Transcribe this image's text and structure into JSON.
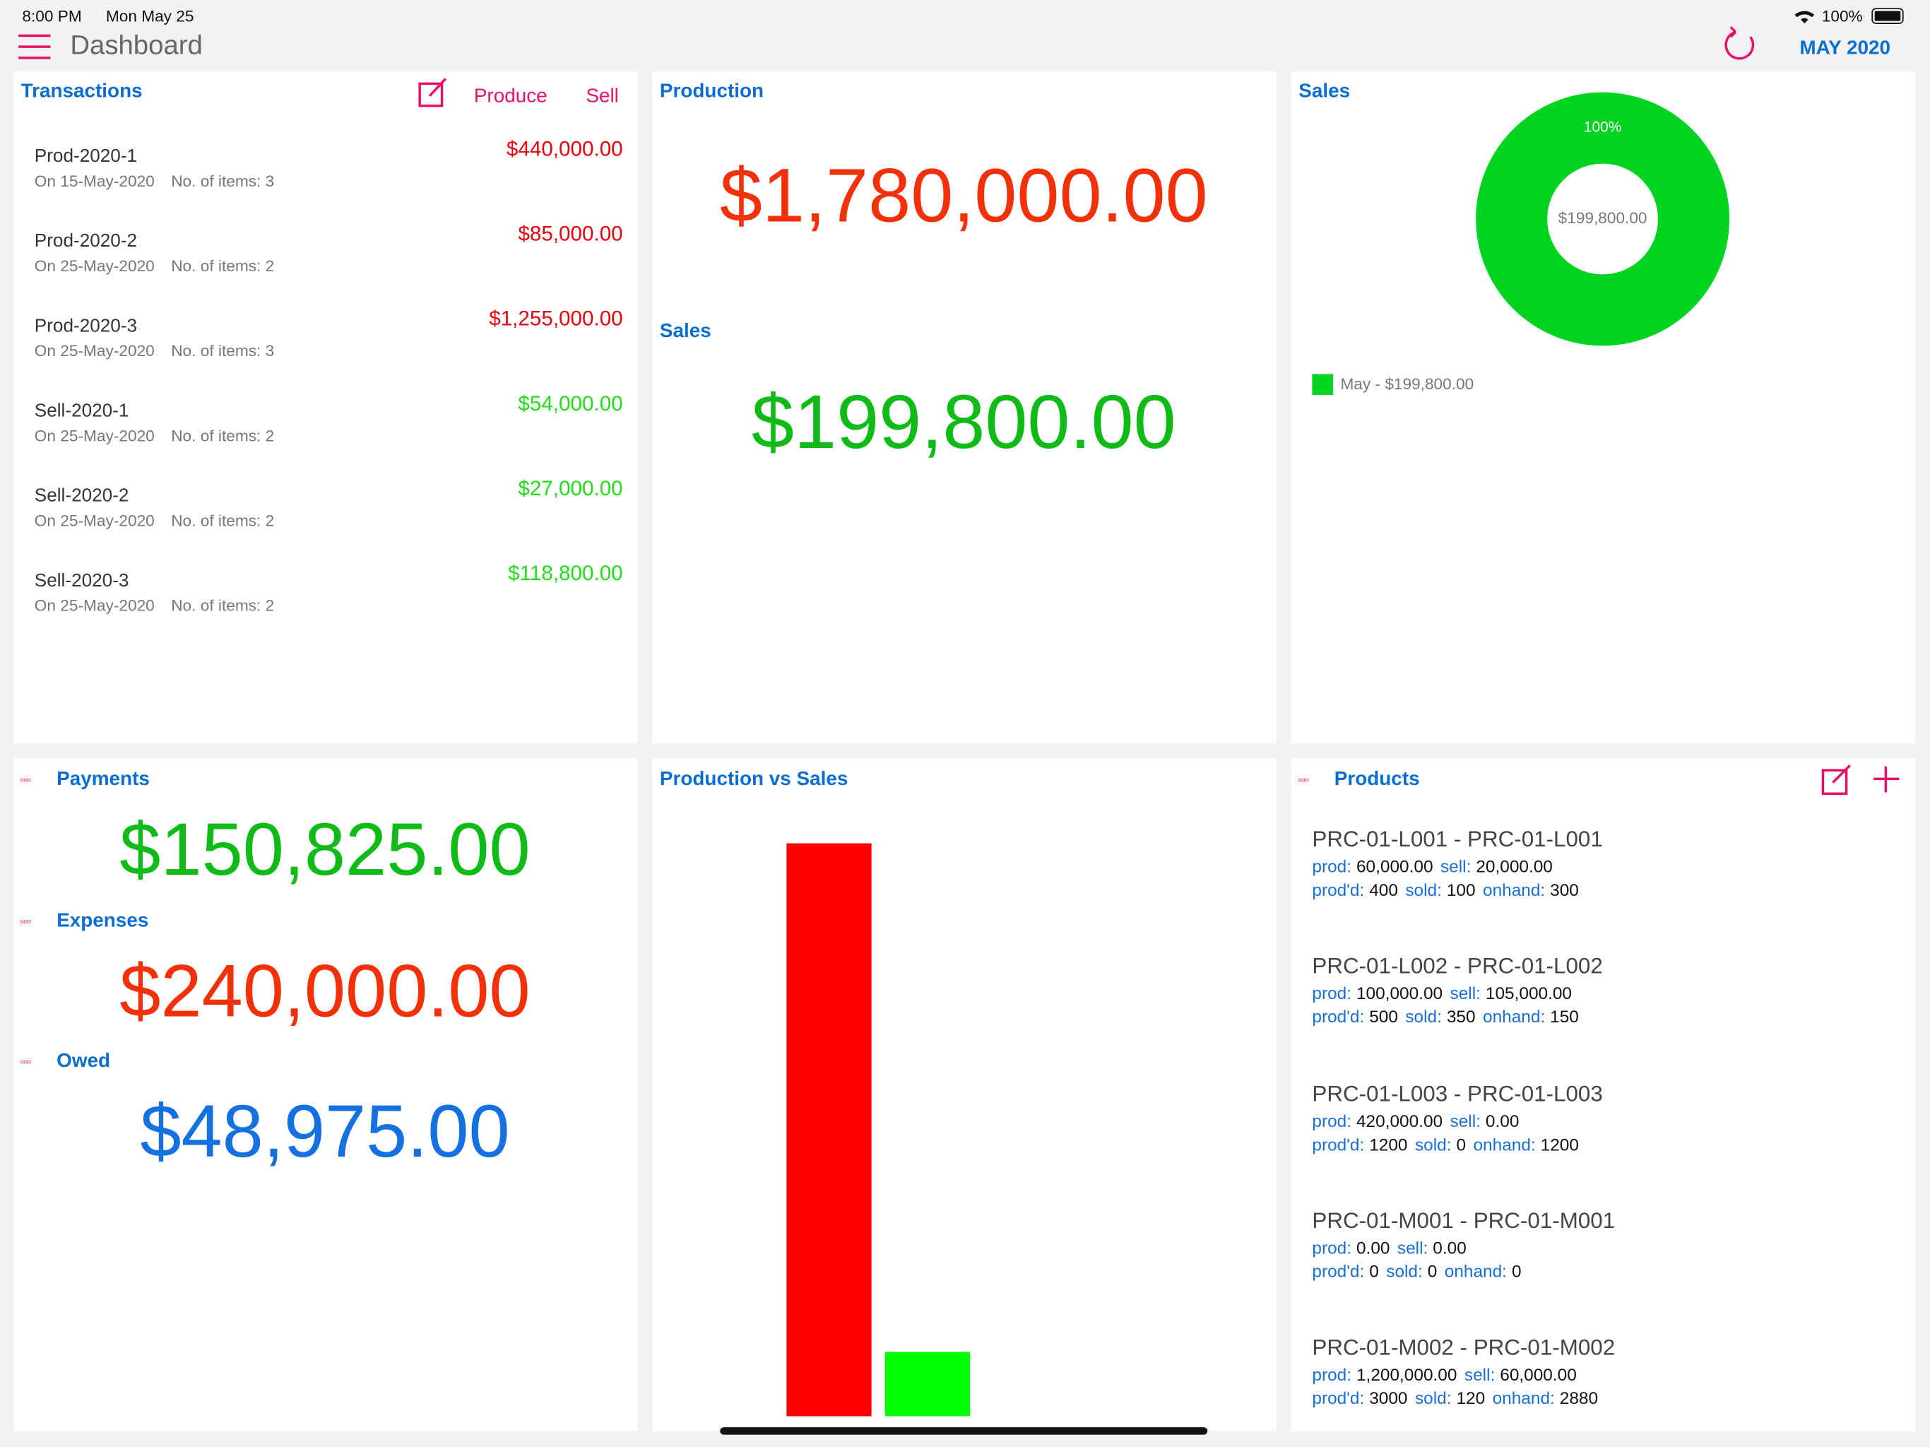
{
  "status_bar": {
    "time": "8:00 PM",
    "date": "Mon May 25",
    "battery": "100%"
  },
  "header": {
    "title": "Dashboard",
    "period": "MAY 2020"
  },
  "transactions": {
    "title": "Transactions",
    "actions": [
      "Produce",
      "Sell"
    ],
    "items": [
      {
        "name": "Prod-2020-1",
        "date": "On 15-May-2020",
        "count": "No. of items: 3",
        "amount": "$440,000.00",
        "color": "#e8000b"
      },
      {
        "name": "Prod-2020-2",
        "date": "On 25-May-2020",
        "count": "No. of items: 2",
        "amount": "$85,000.00",
        "color": "#e8000b"
      },
      {
        "name": "Prod-2020-3",
        "date": "On 25-May-2020",
        "count": "No. of items: 3",
        "amount": "$1,255,000.00",
        "color": "#e8000b"
      },
      {
        "name": "Sell-2020-1",
        "date": "On 25-May-2020",
        "count": "No. of items: 2",
        "amount": "$54,000.00",
        "color": "#22dd1a"
      },
      {
        "name": "Sell-2020-2",
        "date": "On 25-May-2020",
        "count": "No. of items: 2",
        "amount": "$27,000.00",
        "color": "#22dd1a"
      },
      {
        "name": "Sell-2020-3",
        "date": "On 25-May-2020",
        "count": "No. of items: 2",
        "amount": "$118,800.00",
        "color": "#22dd1a"
      }
    ]
  },
  "totals": {
    "production_title": "Production",
    "production": "$1,780,000.00",
    "production_color": "#f2300a",
    "sales_title": "Sales",
    "sales": "$199,800.00",
    "sales_color": "#10bb18"
  },
  "payments": {
    "items": [
      {
        "title": "Payments",
        "amount": "$150,825.00",
        "color": "#10bb18"
      },
      {
        "title": "Expenses",
        "amount": "$240,000.00",
        "color": "#f2300a"
      },
      {
        "title": "Owed",
        "amount": "$48,975.00",
        "color": "#1570e0"
      }
    ]
  },
  "products": {
    "title": "Products",
    "field_labels": {
      "prod": "prod:",
      "sell": "sell:",
      "produced": "prod'd:",
      "sold": "sold:",
      "onhand": "onhand:"
    },
    "items": [
      {
        "name": "PRC-01-L001 - PRC-01-L001",
        "prod": "60,000.00",
        "sell": "20,000.00",
        "produced": "400",
        "sold": "100",
        "onhand": "300"
      },
      {
        "name": "PRC-01-L002 - PRC-01-L002",
        "prod": "100,000.00",
        "sell": "105,000.00",
        "produced": "500",
        "sold": "350",
        "onhand": "150"
      },
      {
        "name": "PRC-01-L003 - PRC-01-L003",
        "prod": "420,000.00",
        "sell": "0.00",
        "produced": "1200",
        "sold": "0",
        "onhand": "1200"
      },
      {
        "name": "PRC-01-M001 - PRC-01-M001",
        "prod": "0.00",
        "sell": "0.00",
        "produced": "0",
        "sold": "0",
        "onhand": "0"
      },
      {
        "name": "PRC-01-M002 - PRC-01-M002",
        "prod": "1,200,000.00",
        "sell": "60,000.00",
        "produced": "3000",
        "sold": "120",
        "onhand": "2880"
      }
    ]
  },
  "chart_data": [
    {
      "type": "pie",
      "title": "Sales",
      "values": [
        100
      ],
      "value_labels": [
        "100%"
      ],
      "colors": [
        "#00d420"
      ],
      "labels": [
        "May - $199,800.00"
      ],
      "center_label": "$199,800.00",
      "hole": true
    },
    {
      "type": "bar",
      "title": "Production vs Sales",
      "categories": [
        null,
        null
      ],
      "values": [
        1780000,
        199800
      ],
      "colors": [
        "#ff0000",
        "#00ff00"
      ],
      "ylim": [
        0,
        1900000
      ]
    }
  ]
}
